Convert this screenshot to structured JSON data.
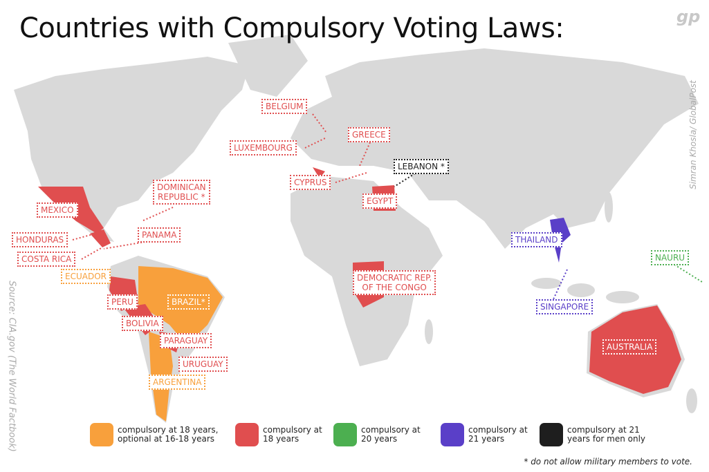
{
  "title": "Countries with Compulsory Voting Laws:",
  "logo": "gp",
  "credit": "Simran Khosla/ GlobalPost",
  "source": "Source: CIA.gov (The World Factbook)",
  "groups": [
    {
      "lines": [
        "compulsory at 18 years,",
        "optional at 16-18 years"
      ],
      "color": "#f8a03c",
      "countries": [
        [
          "ECUADOR"
        ],
        [
          "BRAZIL*"
        ],
        [
          "ARGENTINA"
        ]
      ]
    },
    {
      "lines": [
        "compulsory at",
        "18 years"
      ],
      "color": "#e04e4f",
      "countries": [
        [
          "BELGIUM"
        ],
        [
          "LUXEMBOURG"
        ],
        [
          "GREECE"
        ],
        [
          "CYPRUS"
        ],
        [
          "EGYPT"
        ],
        [
          "DOMINICAN",
          "REPUBLIC *"
        ],
        [
          "MEXICO"
        ],
        [
          "HONDURAS"
        ],
        [
          "COSTA RICA"
        ],
        [
          "PANAMA"
        ],
        [
          "PERU"
        ],
        [
          "BOLIVIA"
        ],
        [
          "PARAGUAY"
        ],
        [
          "URUGUAY"
        ],
        [
          "DEMOCRATIC REP.",
          "OF THE CONGO"
        ],
        [
          "AUSTRALIA"
        ]
      ]
    },
    {
      "lines": [
        "compulsory at",
        "20 years"
      ],
      "color": "#4caf50",
      "countries": [
        [
          "NAURU"
        ]
      ]
    },
    {
      "lines": [
        "compulsory at",
        "21 years"
      ],
      "color": "#5a3fc8",
      "countries": [
        [
          "THAILAND"
        ],
        [
          "SINGAPORE"
        ]
      ]
    },
    {
      "lines": [
        "compulsory at 21",
        "years for men only"
      ],
      "color": "#1e1e1e",
      "countries": [
        [
          "LEBANON *"
        ]
      ]
    }
  ],
  "footnote": "* do not allow military members to vote."
}
